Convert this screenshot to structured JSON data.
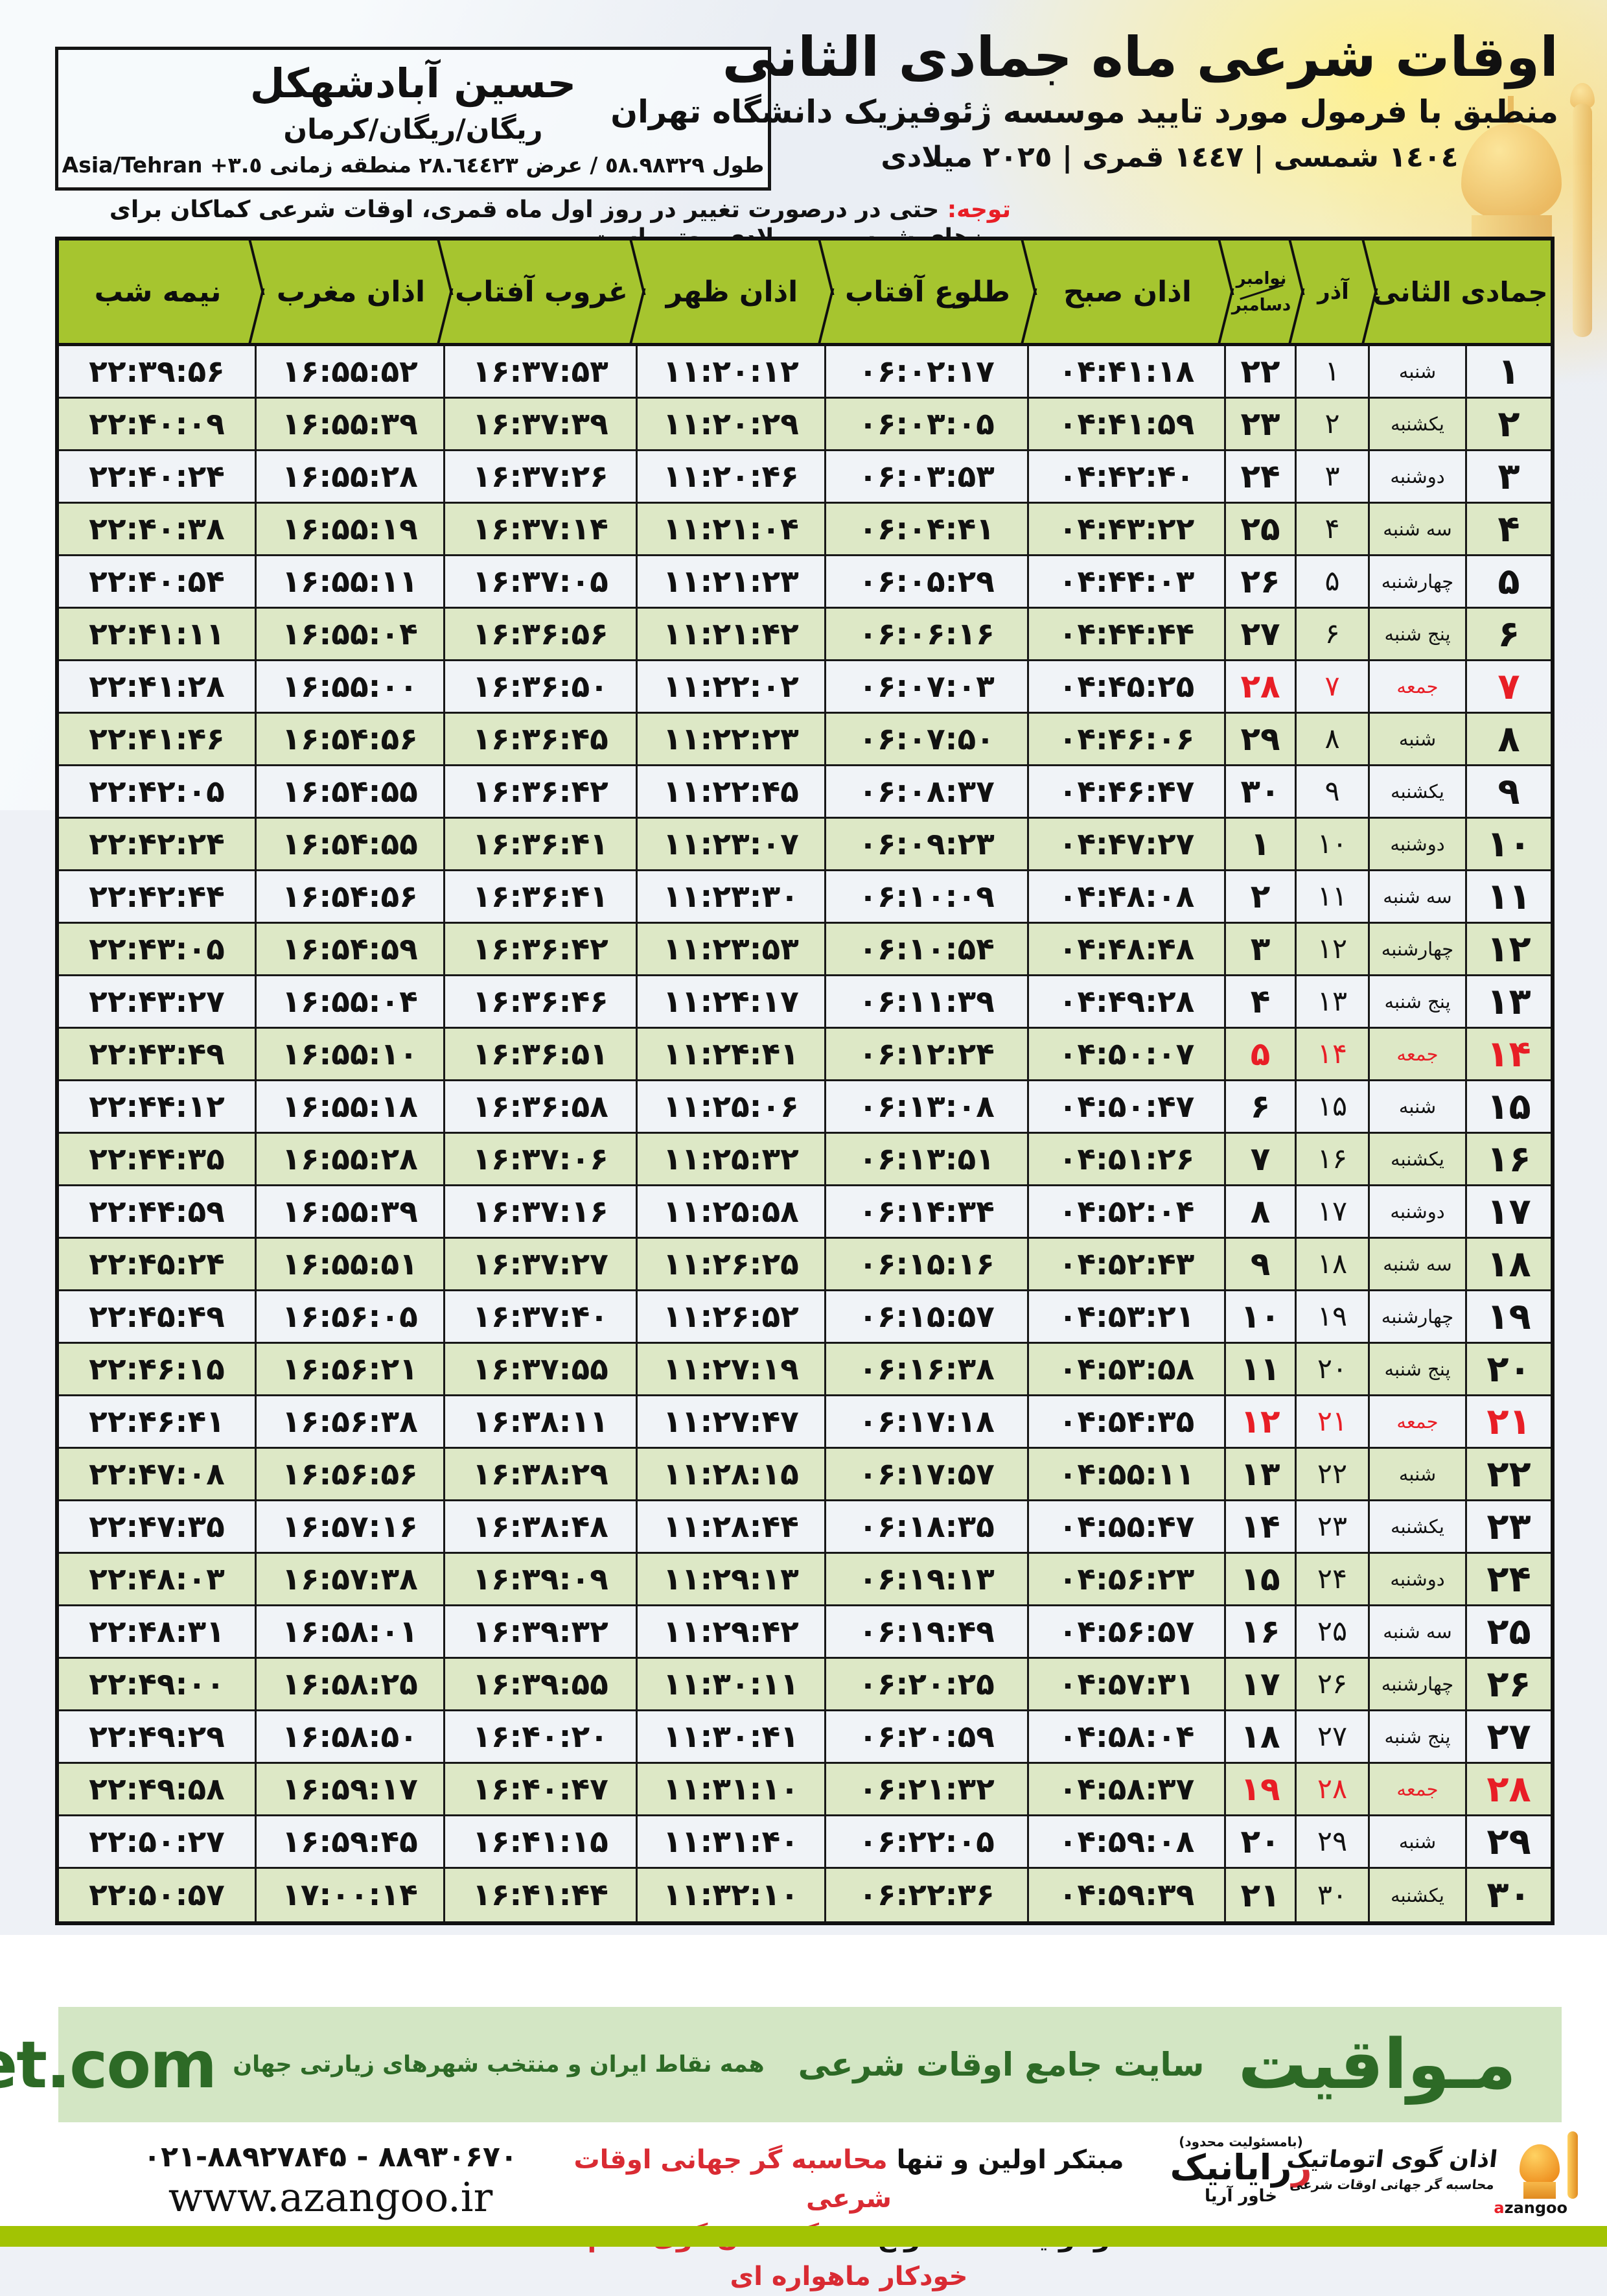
{
  "location": {
    "name": "حسین آبادشهکل",
    "region": "ریگان/ریگان/کرمان",
    "coords": "طول ٥٨.٩٨٣٢٩ / عرض ٢٨.٦٤٤٢٣ منطقه زمانی ٣.٥+ Asia/Tehran"
  },
  "title": {
    "main": "اوقات شرعی ماه جمادی الثانی",
    "subtitle": "منطبق با فرمول مورد تایید موسسه ژئوفیزیک دانشگاه تهران",
    "dates": "١٤٠٤ شمسی | ١٤٤٧ قمری | ٢٠٢٥ میلادی"
  },
  "note": {
    "label": "توجه:",
    "text": " حتی در درصورت تغییر در روز اول ماه قمری، اوقات شرعی کماکان برای روزهای شمسی و میلادی معتبر است."
  },
  "table": {
    "headers": {
      "midnight": "نیمه شب",
      "maghrib": "اذان مغرب",
      "sunset": "غروب آفتاب",
      "dhuhr": "اذان ظهر",
      "sunrise": "طلوع آفتاب",
      "fajr": "اذان صبح",
      "nov": "نوامبر",
      "dec": "دسامبر",
      "azar": "آذر",
      "month": "جمادی الثانی"
    },
    "rows": [
      {
        "day": "۱",
        "weekday": "شنبه",
        "azar": "۱",
        "greg": "۲۲",
        "fajr": "۰۴:۴۱:۱۸",
        "sunrise": "۰۶:۰۲:۱۷",
        "dhuhr": "۱۱:۲۰:۱۲",
        "sunset": "۱۶:۳۷:۵۳",
        "maghrib": "۱۶:۵۵:۵۲",
        "midnight": "۲۲:۳۹:۵۶",
        "friday": false
      },
      {
        "day": "۲",
        "weekday": "یکشنبه",
        "azar": "۲",
        "greg": "۲۳",
        "fajr": "۰۴:۴۱:۵۹",
        "sunrise": "۰۶:۰۳:۰۵",
        "dhuhr": "۱۱:۲۰:۲۹",
        "sunset": "۱۶:۳۷:۳۹",
        "maghrib": "۱۶:۵۵:۳۹",
        "midnight": "۲۲:۴۰:۰۹",
        "friday": false
      },
      {
        "day": "۳",
        "weekday": "دوشنبه",
        "azar": "۳",
        "greg": "۲۴",
        "fajr": "۰۴:۴۲:۴۰",
        "sunrise": "۰۶:۰۳:۵۳",
        "dhuhr": "۱۱:۲۰:۴۶",
        "sunset": "۱۶:۳۷:۲۶",
        "maghrib": "۱۶:۵۵:۲۸",
        "midnight": "۲۲:۴۰:۲۴",
        "friday": false
      },
      {
        "day": "۴",
        "weekday": "سه شنبه",
        "azar": "۴",
        "greg": "۲۵",
        "fajr": "۰۴:۴۳:۲۲",
        "sunrise": "۰۶:۰۴:۴۱",
        "dhuhr": "۱۱:۲۱:۰۴",
        "sunset": "۱۶:۳۷:۱۴",
        "maghrib": "۱۶:۵۵:۱۹",
        "midnight": "۲۲:۴۰:۳۸",
        "friday": false
      },
      {
        "day": "۵",
        "weekday": "چهارشنبه",
        "azar": "۵",
        "greg": "۲۶",
        "fajr": "۰۴:۴۴:۰۳",
        "sunrise": "۰۶:۰۵:۲۹",
        "dhuhr": "۱۱:۲۱:۲۳",
        "sunset": "۱۶:۳۷:۰۵",
        "maghrib": "۱۶:۵۵:۱۱",
        "midnight": "۲۲:۴۰:۵۴",
        "friday": false
      },
      {
        "day": "۶",
        "weekday": "پنج شنبه",
        "azar": "۶",
        "greg": "۲۷",
        "fajr": "۰۴:۴۴:۴۴",
        "sunrise": "۰۶:۰۶:۱۶",
        "dhuhr": "۱۱:۲۱:۴۲",
        "sunset": "۱۶:۳۶:۵۶",
        "maghrib": "۱۶:۵۵:۰۴",
        "midnight": "۲۲:۴۱:۱۱",
        "friday": false
      },
      {
        "day": "۷",
        "weekday": "جمعه",
        "azar": "۷",
        "greg": "۲۸",
        "fajr": "۰۴:۴۵:۲۵",
        "sunrise": "۰۶:۰۷:۰۳",
        "dhuhr": "۱۱:۲۲:۰۲",
        "sunset": "۱۶:۳۶:۵۰",
        "maghrib": "۱۶:۵۵:۰۰",
        "midnight": "۲۲:۴۱:۲۸",
        "friday": true
      },
      {
        "day": "۸",
        "weekday": "شنبه",
        "azar": "۸",
        "greg": "۲۹",
        "fajr": "۰۴:۴۶:۰۶",
        "sunrise": "۰۶:۰۷:۵۰",
        "dhuhr": "۱۱:۲۲:۲۳",
        "sunset": "۱۶:۳۶:۴۵",
        "maghrib": "۱۶:۵۴:۵۶",
        "midnight": "۲۲:۴۱:۴۶",
        "friday": false
      },
      {
        "day": "۹",
        "weekday": "یکشنبه",
        "azar": "۹",
        "greg": "۳۰",
        "fajr": "۰۴:۴۶:۴۷",
        "sunrise": "۰۶:۰۸:۳۷",
        "dhuhr": "۱۱:۲۲:۴۵",
        "sunset": "۱۶:۳۶:۴۲",
        "maghrib": "۱۶:۵۴:۵۵",
        "midnight": "۲۲:۴۲:۰۵",
        "friday": false
      },
      {
        "day": "۱۰",
        "weekday": "دوشنبه",
        "azar": "۱۰",
        "greg": "۱",
        "fajr": "۰۴:۴۷:۲۷",
        "sunrise": "۰۶:۰۹:۲۳",
        "dhuhr": "۱۱:۲۳:۰۷",
        "sunset": "۱۶:۳۶:۴۱",
        "maghrib": "۱۶:۵۴:۵۵",
        "midnight": "۲۲:۴۲:۲۴",
        "friday": false
      },
      {
        "day": "۱۱",
        "weekday": "سه شنبه",
        "azar": "۱۱",
        "greg": "۲",
        "fajr": "۰۴:۴۸:۰۸",
        "sunrise": "۰۶:۱۰:۰۹",
        "dhuhr": "۱۱:۲۳:۳۰",
        "sunset": "۱۶:۳۶:۴۱",
        "maghrib": "۱۶:۵۴:۵۶",
        "midnight": "۲۲:۴۲:۴۴",
        "friday": false
      },
      {
        "day": "۱۲",
        "weekday": "چهارشنبه",
        "azar": "۱۲",
        "greg": "۳",
        "fajr": "۰۴:۴۸:۴۸",
        "sunrise": "۰۶:۱۰:۵۴",
        "dhuhr": "۱۱:۲۳:۵۳",
        "sunset": "۱۶:۳۶:۴۲",
        "maghrib": "۱۶:۵۴:۵۹",
        "midnight": "۲۲:۴۳:۰۵",
        "friday": false
      },
      {
        "day": "۱۳",
        "weekday": "پنج شنبه",
        "azar": "۱۳",
        "greg": "۴",
        "fajr": "۰۴:۴۹:۲۸",
        "sunrise": "۰۶:۱۱:۳۹",
        "dhuhr": "۱۱:۲۴:۱۷",
        "sunset": "۱۶:۳۶:۴۶",
        "maghrib": "۱۶:۵۵:۰۴",
        "midnight": "۲۲:۴۳:۲۷",
        "friday": false
      },
      {
        "day": "۱۴",
        "weekday": "جمعه",
        "azar": "۱۴",
        "greg": "۵",
        "fajr": "۰۴:۵۰:۰۷",
        "sunrise": "۰۶:۱۲:۲۴",
        "dhuhr": "۱۱:۲۴:۴۱",
        "sunset": "۱۶:۳۶:۵۱",
        "maghrib": "۱۶:۵۵:۱۰",
        "midnight": "۲۲:۴۳:۴۹",
        "friday": true
      },
      {
        "day": "۱۵",
        "weekday": "شنبه",
        "azar": "۱۵",
        "greg": "۶",
        "fajr": "۰۴:۵۰:۴۷",
        "sunrise": "۰۶:۱۳:۰۸",
        "dhuhr": "۱۱:۲۵:۰۶",
        "sunset": "۱۶:۳۶:۵۸",
        "maghrib": "۱۶:۵۵:۱۸",
        "midnight": "۲۲:۴۴:۱۲",
        "friday": false
      },
      {
        "day": "۱۶",
        "weekday": "یکشنبه",
        "azar": "۱۶",
        "greg": "۷",
        "fajr": "۰۴:۵۱:۲۶",
        "sunrise": "۰۶:۱۳:۵۱",
        "dhuhr": "۱۱:۲۵:۳۲",
        "sunset": "۱۶:۳۷:۰۶",
        "maghrib": "۱۶:۵۵:۲۸",
        "midnight": "۲۲:۴۴:۳۵",
        "friday": false
      },
      {
        "day": "۱۷",
        "weekday": "دوشنبه",
        "azar": "۱۷",
        "greg": "۸",
        "fajr": "۰۴:۵۲:۰۴",
        "sunrise": "۰۶:۱۴:۳۴",
        "dhuhr": "۱۱:۲۵:۵۸",
        "sunset": "۱۶:۳۷:۱۶",
        "maghrib": "۱۶:۵۵:۳۹",
        "midnight": "۲۲:۴۴:۵۹",
        "friday": false
      },
      {
        "day": "۱۸",
        "weekday": "سه شنبه",
        "azar": "۱۸",
        "greg": "۹",
        "fajr": "۰۴:۵۲:۴۳",
        "sunrise": "۰۶:۱۵:۱۶",
        "dhuhr": "۱۱:۲۶:۲۵",
        "sunset": "۱۶:۳۷:۲۷",
        "maghrib": "۱۶:۵۵:۵۱",
        "midnight": "۲۲:۴۵:۲۴",
        "friday": false
      },
      {
        "day": "۱۹",
        "weekday": "چهارشنبه",
        "azar": "۱۹",
        "greg": "۱۰",
        "fajr": "۰۴:۵۳:۲۱",
        "sunrise": "۰۶:۱۵:۵۷",
        "dhuhr": "۱۱:۲۶:۵۲",
        "sunset": "۱۶:۳۷:۴۰",
        "maghrib": "۱۶:۵۶:۰۵",
        "midnight": "۲۲:۴۵:۴۹",
        "friday": false
      },
      {
        "day": "۲۰",
        "weekday": "پنج شنبه",
        "azar": "۲۰",
        "greg": "۱۱",
        "fajr": "۰۴:۵۳:۵۸",
        "sunrise": "۰۶:۱۶:۳۸",
        "dhuhr": "۱۱:۲۷:۱۹",
        "sunset": "۱۶:۳۷:۵۵",
        "maghrib": "۱۶:۵۶:۲۱",
        "midnight": "۲۲:۴۶:۱۵",
        "friday": false
      },
      {
        "day": "۲۱",
        "weekday": "جمعه",
        "azar": "۲۱",
        "greg": "۱۲",
        "fajr": "۰۴:۵۴:۳۵",
        "sunrise": "۰۶:۱۷:۱۸",
        "dhuhr": "۱۱:۲۷:۴۷",
        "sunset": "۱۶:۳۸:۱۱",
        "maghrib": "۱۶:۵۶:۳۸",
        "midnight": "۲۲:۴۶:۴۱",
        "friday": true
      },
      {
        "day": "۲۲",
        "weekday": "شنبه",
        "azar": "۲۲",
        "greg": "۱۳",
        "fajr": "۰۴:۵۵:۱۱",
        "sunrise": "۰۶:۱۷:۵۷",
        "dhuhr": "۱۱:۲۸:۱۵",
        "sunset": "۱۶:۳۸:۲۹",
        "maghrib": "۱۶:۵۶:۵۶",
        "midnight": "۲۲:۴۷:۰۸",
        "friday": false
      },
      {
        "day": "۲۳",
        "weekday": "یکشنبه",
        "azar": "۲۳",
        "greg": "۱۴",
        "fajr": "۰۴:۵۵:۴۷",
        "sunrise": "۰۶:۱۸:۳۵",
        "dhuhr": "۱۱:۲۸:۴۴",
        "sunset": "۱۶:۳۸:۴۸",
        "maghrib": "۱۶:۵۷:۱۶",
        "midnight": "۲۲:۴۷:۳۵",
        "friday": false
      },
      {
        "day": "۲۴",
        "weekday": "دوشنبه",
        "azar": "۲۴",
        "greg": "۱۵",
        "fajr": "۰۴:۵۶:۲۳",
        "sunrise": "۰۶:۱۹:۱۳",
        "dhuhr": "۱۱:۲۹:۱۳",
        "sunset": "۱۶:۳۹:۰۹",
        "maghrib": "۱۶:۵۷:۳۸",
        "midnight": "۲۲:۴۸:۰۳",
        "friday": false
      },
      {
        "day": "۲۵",
        "weekday": "سه شنبه",
        "azar": "۲۵",
        "greg": "۱۶",
        "fajr": "۰۴:۵۶:۵۷",
        "sunrise": "۰۶:۱۹:۴۹",
        "dhuhr": "۱۱:۲۹:۴۲",
        "sunset": "۱۶:۳۹:۳۲",
        "maghrib": "۱۶:۵۸:۰۱",
        "midnight": "۲۲:۴۸:۳۱",
        "friday": false
      },
      {
        "day": "۲۶",
        "weekday": "چهارشنبه",
        "azar": "۲۶",
        "greg": "۱۷",
        "fajr": "۰۴:۵۷:۳۱",
        "sunrise": "۰۶:۲۰:۲۵",
        "dhuhr": "۱۱:۳۰:۱۱",
        "sunset": "۱۶:۳۹:۵۵",
        "maghrib": "۱۶:۵۸:۲۵",
        "midnight": "۲۲:۴۹:۰۰",
        "friday": false
      },
      {
        "day": "۲۷",
        "weekday": "پنج شنبه",
        "azar": "۲۷",
        "greg": "۱۸",
        "fajr": "۰۴:۵۸:۰۴",
        "sunrise": "۰۶:۲۰:۵۹",
        "dhuhr": "۱۱:۳۰:۴۱",
        "sunset": "۱۶:۴۰:۲۰",
        "maghrib": "۱۶:۵۸:۵۰",
        "midnight": "۲۲:۴۹:۲۹",
        "friday": false
      },
      {
        "day": "۲۸",
        "weekday": "جمعه",
        "azar": "۲۸",
        "greg": "۱۹",
        "fajr": "۰۴:۵۸:۳۷",
        "sunrise": "۰۶:۲۱:۳۲",
        "dhuhr": "۱۱:۳۱:۱۰",
        "sunset": "۱۶:۴۰:۴۷",
        "maghrib": "۱۶:۵۹:۱۷",
        "midnight": "۲۲:۴۹:۵۸",
        "friday": true
      },
      {
        "day": "۲۹",
        "weekday": "شنبه",
        "azar": "۲۹",
        "greg": "۲۰",
        "fajr": "۰۴:۵۹:۰۸",
        "sunrise": "۰۶:۲۲:۰۵",
        "dhuhr": "۱۱:۳۱:۴۰",
        "sunset": "۱۶:۴۱:۱۵",
        "maghrib": "۱۶:۵۹:۴۵",
        "midnight": "۲۲:۵۰:۲۷",
        "friday": false
      },
      {
        "day": "۳۰",
        "weekday": "یکشنبه",
        "azar": "۳۰",
        "greg": "۲۱",
        "fajr": "۰۴:۵۹:۳۹",
        "sunrise": "۰۶:۲۲:۳۶",
        "dhuhr": "۱۱:۳۲:۱۰",
        "sunset": "۱۶:۴۱:۴۴",
        "maghrib": "۱۷:۰۰:۱۴",
        "midnight": "۲۲:۵۰:۵۷",
        "friday": false
      }
    ]
  },
  "mavaqeet": {
    "brand_fa": "مـواقیت",
    "site_desc": "سایت جامع اوقات شرعی",
    "site_desc2": "همه نقاط ایران و منتخب شهرهای زیارتی جهان",
    "brand_en": "mavaqeet.com"
  },
  "bottom": {
    "line1_black": "مبتکر اولین و تنها ",
    "line1_red": "محاسبه گر جهانی اوقات شرعی",
    "line2_black": "و تولید کننده انواع ",
    "line2_red": "دستگاه اذان گوی تمام خودکار ماهواره ای",
    "phones": "۰۲۱-۸۸۹۲۷۸۴۵ - ۸۸۹۳۰۶۷۰",
    "url": "www.azangoo.ir",
    "rayanik_note": "(بامسئولیت محدود)",
    "rayanik_main": "رایانیک",
    "rayanik_sub": "خاور آریا",
    "azangoo_title": "اذان گوی اتوماتیک",
    "azangoo_sub": "محاسبه گر جهانی اوقات شرعی",
    "azangoo_brand_a": "a",
    "azangoo_brand_rest": "zangoo"
  },
  "colors": {
    "header_green": "#a6c52f",
    "row_green": "#dde8c6",
    "row_white": "#f0f3f7",
    "friday_red": "#e81e26",
    "footer_bar_green": "#a2c303",
    "mavaqeet_bg": "#d3e6c4",
    "mavaqeet_text": "#2d6a26"
  }
}
